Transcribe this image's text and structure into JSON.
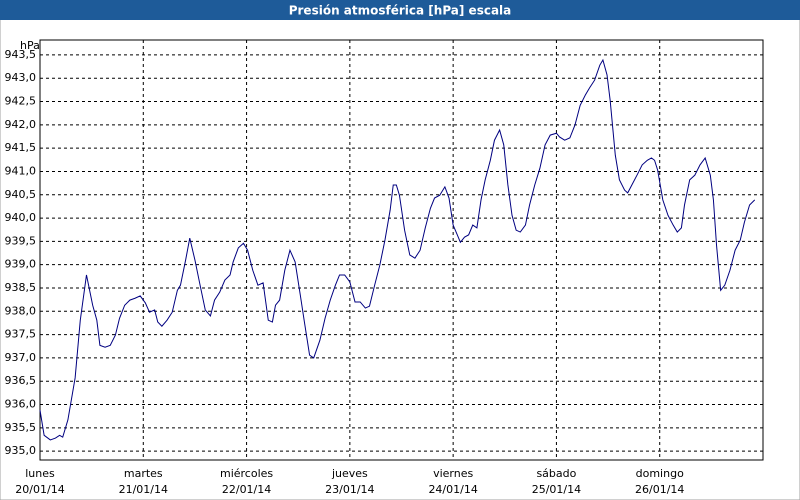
{
  "chart_data": {
    "type": "line",
    "title": "Presión atmosférica [hPa] escala",
    "y_unit": "hPa",
    "xlim": [
      0,
      7
    ],
    "ylim": [
      934.81,
      943.82
    ],
    "grid": true,
    "xticks": [
      {
        "value": 0,
        "label": "lunes",
        "date": "20/01/14"
      },
      {
        "value": 1,
        "label": "martes",
        "date": "21/01/14"
      },
      {
        "value": 2,
        "label": "miércoles",
        "date": "22/01/14"
      },
      {
        "value": 3,
        "label": "jueves",
        "date": "23/01/14"
      },
      {
        "value": 4,
        "label": "viernes",
        "date": "24/01/14"
      },
      {
        "value": 5,
        "label": "sábado",
        "date": "25/01/14"
      },
      {
        "value": 6,
        "label": "domingo",
        "date": "26/01/14"
      }
    ],
    "yticks": [
      {
        "value": 935.0,
        "label": "935,0"
      },
      {
        "value": 935.5,
        "label": "935,5"
      },
      {
        "value": 936.0,
        "label": "936,0"
      },
      {
        "value": 936.5,
        "label": "936,5"
      },
      {
        "value": 937.0,
        "label": "937,0"
      },
      {
        "value": 937.5,
        "label": "937,5"
      },
      {
        "value": 938.0,
        "label": "938,0"
      },
      {
        "value": 938.5,
        "label": "938,5"
      },
      {
        "value": 939.0,
        "label": "939,0"
      },
      {
        "value": 939.5,
        "label": "939,5"
      },
      {
        "value": 940.0,
        "label": "940,0"
      },
      {
        "value": 940.5,
        "label": "940,5"
      },
      {
        "value": 941.0,
        "label": "941,0"
      },
      {
        "value": 941.5,
        "label": "941,5"
      },
      {
        "value": 942.0,
        "label": "942,0"
      },
      {
        "value": 942.5,
        "label": "942,5"
      },
      {
        "value": 943.0,
        "label": "943,0"
      },
      {
        "value": 943.5,
        "label": "943,5"
      }
    ],
    "series": [
      {
        "color": "#000080",
        "x": [
          0,
          0.04,
          0.1,
          0.15,
          0.19,
          0.22,
          0.27,
          0.34,
          0.39,
          0.45,
          0.51,
          0.55,
          0.58,
          0.63,
          0.68,
          0.73,
          0.77,
          0.82,
          0.87,
          0.92,
          0.97,
          1.02,
          1.06,
          1.11,
          1.14,
          1.18,
          1.23,
          1.28,
          1.33,
          1.36,
          1.41,
          1.45,
          1.5,
          1.55,
          1.6,
          1.65,
          1.69,
          1.74,
          1.79,
          1.84,
          1.87,
          1.92,
          1.97,
          2.01,
          2.06,
          2.11,
          2.16,
          2.21,
          2.25,
          2.28,
          2.32,
          2.37,
          2.42,
          2.47,
          2.52,
          2.56,
          2.61,
          2.65,
          2.71,
          2.76,
          2.81,
          2.86,
          2.9,
          2.95,
          3.0,
          3.05,
          3.1,
          3.15,
          3.19,
          3.24,
          3.29,
          3.34,
          3.39,
          3.42,
          3.45,
          3.48,
          3.53,
          3.58,
          3.63,
          3.68,
          3.73,
          3.78,
          3.82,
          3.87,
          3.92,
          3.96,
          4.0,
          4.04,
          4.07,
          4.11,
          4.15,
          4.19,
          4.23,
          4.27,
          4.31,
          4.36,
          4.4,
          4.45,
          4.49,
          4.53,
          4.57,
          4.61,
          4.65,
          4.7,
          4.74,
          4.79,
          4.84,
          4.89,
          4.94,
          5.0,
          5.03,
          5.08,
          5.13,
          5.18,
          5.23,
          5.28,
          5.32,
          5.37,
          5.42,
          5.45,
          5.49,
          5.52,
          5.57,
          5.61,
          5.66,
          5.69,
          5.73,
          5.78,
          5.83,
          5.88,
          5.92,
          5.95,
          5.98,
          6.03,
          6.08,
          6.13,
          6.17,
          6.21,
          6.24,
          6.29,
          6.34,
          6.39,
          6.44,
          6.49,
          6.52,
          6.55,
          6.59,
          6.63,
          6.68,
          6.73,
          6.78,
          6.82,
          6.87,
          6.92
        ],
        "values": [
          935.88,
          935.34,
          935.24,
          935.28,
          935.34,
          935.3,
          935.67,
          936.57,
          937.81,
          938.78,
          938.13,
          937.81,
          937.27,
          937.23,
          937.27,
          937.49,
          937.85,
          938.13,
          938.24,
          938.28,
          938.33,
          938.18,
          937.98,
          938.03,
          937.77,
          937.68,
          937.81,
          937.98,
          938.45,
          938.56,
          939.1,
          939.57,
          939.1,
          938.56,
          938.03,
          937.9,
          938.24,
          938.41,
          938.67,
          938.78,
          939.06,
          939.36,
          939.46,
          939.31,
          938.88,
          938.56,
          938.61,
          937.81,
          937.77,
          938.13,
          938.24,
          938.88,
          939.31,
          939.06,
          938.35,
          937.77,
          937.06,
          937.0,
          937.38,
          937.85,
          938.24,
          938.56,
          938.78,
          938.78,
          938.63,
          938.2,
          938.2,
          938.07,
          938.11,
          938.56,
          938.99,
          939.53,
          940.17,
          940.71,
          940.71,
          940.49,
          939.74,
          939.21,
          939.14,
          939.31,
          939.79,
          940.21,
          940.43,
          940.49,
          940.67,
          940.43,
          939.85,
          939.64,
          939.48,
          939.59,
          939.64,
          939.85,
          939.79,
          940.39,
          940.82,
          941.24,
          941.67,
          941.89,
          941.57,
          940.71,
          940.06,
          939.74,
          939.7,
          939.85,
          940.28,
          940.71,
          941.07,
          941.57,
          941.78,
          941.82,
          941.74,
          941.67,
          941.72,
          942.0,
          942.42,
          942.64,
          942.79,
          942.96,
          943.28,
          943.39,
          943.07,
          942.53,
          941.35,
          940.82,
          940.6,
          940.54,
          940.71,
          940.92,
          941.14,
          941.24,
          941.29,
          941.24,
          941.03,
          940.39,
          940.06,
          939.85,
          939.7,
          939.79,
          940.28,
          940.82,
          940.92,
          941.14,
          941.29,
          940.92,
          940.39,
          939.42,
          938.45,
          938.56,
          938.88,
          939.31,
          939.53,
          939.91,
          940.28,
          940.39
        ]
      }
    ]
  }
}
